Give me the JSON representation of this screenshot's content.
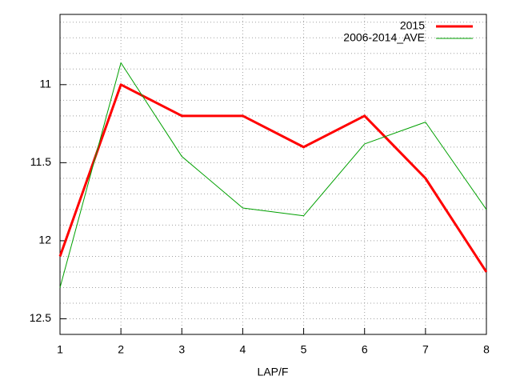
{
  "chart_data": {
    "type": "line",
    "x_label": "LAP/F",
    "x": [
      1,
      2,
      3,
      4,
      5,
      6,
      7,
      8
    ],
    "series": [
      {
        "name": "2015",
        "color": "#ff0000",
        "width": 3,
        "values": [
          12.1,
          11.0,
          11.2,
          11.2,
          11.4,
          11.2,
          11.6,
          12.2
        ]
      },
      {
        "name": "2006-2014_AVE",
        "color": "#00a000",
        "width": 1,
        "values": [
          12.3,
          10.86,
          11.46,
          11.79,
          11.84,
          11.38,
          11.24,
          11.8
        ]
      }
    ],
    "xlim": [
      1,
      8
    ],
    "xticks": [
      1,
      2,
      3,
      4,
      5,
      6,
      7,
      8
    ],
    "ylim": [
      12.6,
      10.55
    ],
    "yticks": [
      11,
      11.5,
      12,
      12.5
    ],
    "y_minor_ticks": [
      10.6,
      10.7,
      10.8,
      10.9,
      11.1,
      11.2,
      11.3,
      11.4,
      11.6,
      11.7,
      11.8,
      11.9,
      12.1,
      12.2,
      12.3,
      12.4,
      12.6
    ],
    "grid": true,
    "legend": "top-right"
  }
}
